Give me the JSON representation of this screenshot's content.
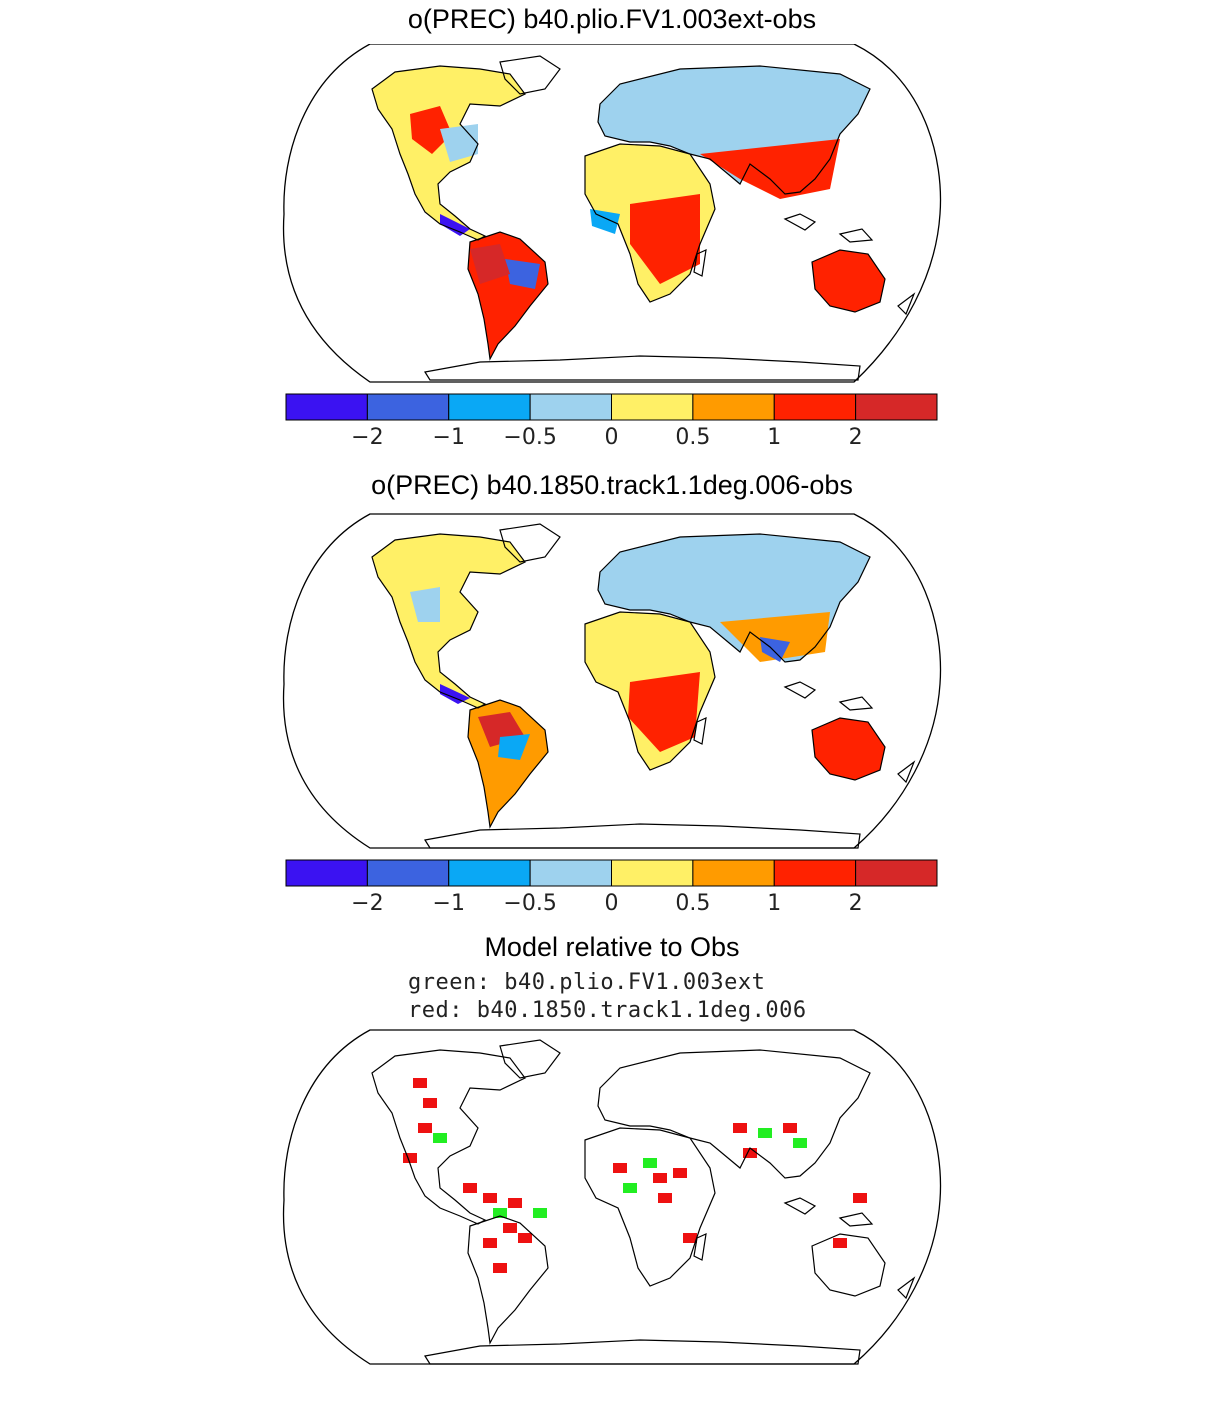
{
  "panels": [
    {
      "title": "o(PREC) b40.plio.FV1.003ext-obs"
    },
    {
      "title": "o(PREC) b40.1850.track1.1deg.006-obs"
    },
    {
      "title": "Model relative to Obs",
      "legend_lines": [
        "green: b40.plio.FV1.003ext",
        "red: b40.1850.track1.1deg.006"
      ]
    }
  ],
  "colorbar": {
    "colors": [
      "#3b12f2",
      "#3c63e0",
      "#0aa8f5",
      "#9ed2ee",
      "#fff066",
      "#ff9b00",
      "#ff2200",
      "#d62828"
    ],
    "tick_labels": [
      "−2",
      "−1",
      "−0.5",
      "0",
      "0.5",
      "1",
      "2"
    ]
  },
  "relative_colors": {
    "green": "#22ee22",
    "red": "#ee1111"
  },
  "map_colors": {
    "outline": "#000000",
    "ocean": "#ffffff"
  }
}
